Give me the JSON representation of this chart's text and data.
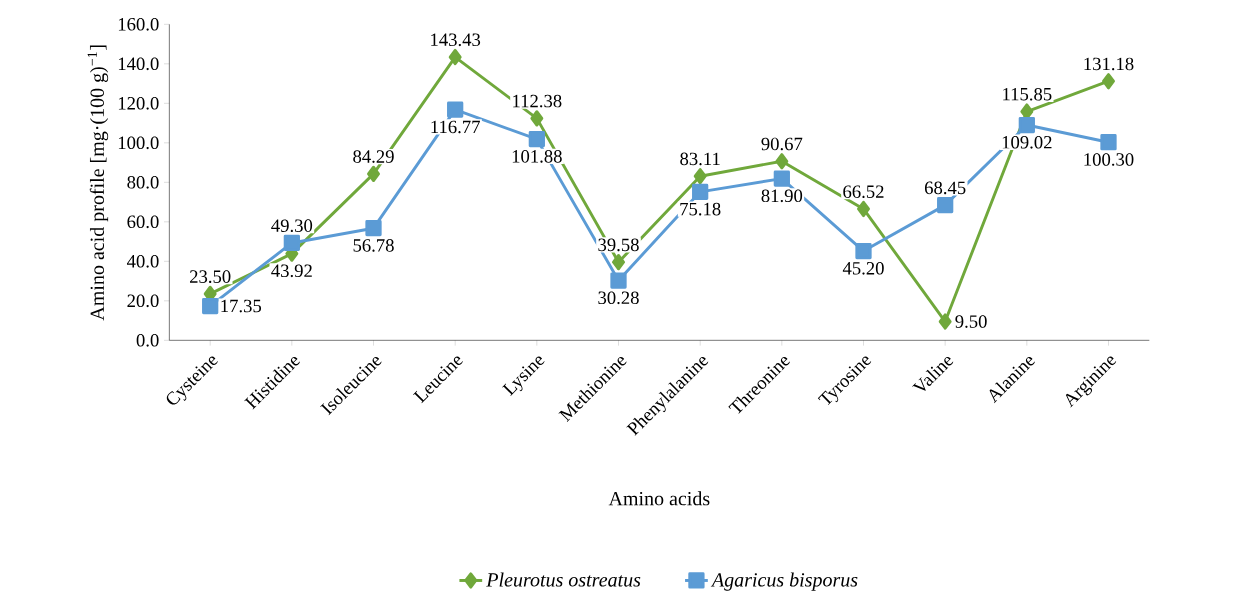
{
  "chart_data": {
    "type": "line",
    "xlabel": "Amino acids",
    "ylabel": "Amino acid profile [mg·(100 g)$^{−1}$]",
    "categories": [
      "Cysteine",
      "Histidine",
      "Isoleucine",
      "Leucine",
      "Lysine",
      "Methionine",
      "Phenylalanine",
      "Threonine",
      "Tyrosine",
      "Valine",
      "Alanine",
      "Arginine"
    ],
    "ylim": [
      0,
      160
    ],
    "yticks": [
      {
        "value": 0,
        "label": "0.0"
      },
      {
        "value": 20,
        "label": "20.0"
      },
      {
        "value": 40,
        "label": "40.0"
      },
      {
        "value": 60,
        "label": "60.0"
      },
      {
        "value": 80,
        "label": "80.0"
      },
      {
        "value": 100,
        "label": "100.0"
      },
      {
        "value": 120,
        "label": "120.0"
      },
      {
        "value": 140,
        "label": "140.0"
      },
      {
        "value": 160,
        "label": "160.0"
      }
    ],
    "grid": false,
    "legend": "bottom",
    "line_style": "solid",
    "series": [
      {
        "name": "Pleurotus ostreatus",
        "color": "#70a83b",
        "marker": "diamond",
        "values": [
          23.5,
          43.92,
          84.29,
          143.43,
          112.38,
          39.58,
          83.11,
          90.67,
          66.52,
          9.5,
          115.85,
          131.18
        ],
        "value_labels": [
          "23.50",
          "43.92",
          "84.29",
          "143.43",
          "112.38",
          "39.58",
          "83.11",
          "90.67",
          "66.52",
          "9.50",
          "115.85",
          "131.18"
        ]
      },
      {
        "name": "Agaricus bisporus",
        "color": "#5b9bd5",
        "marker": "square",
        "values": [
          17.35,
          49.3,
          56.78,
          116.77,
          101.88,
          30.28,
          75.18,
          81.9,
          45.2,
          68.45,
          109.02,
          100.3
        ],
        "value_labels": [
          "17.35",
          "49.30",
          "56.78",
          "116.77",
          "101.88",
          "30.28",
          "75.18",
          "81.90",
          "45.20",
          "68.45",
          "109.02",
          "100.30"
        ]
      }
    ]
  }
}
